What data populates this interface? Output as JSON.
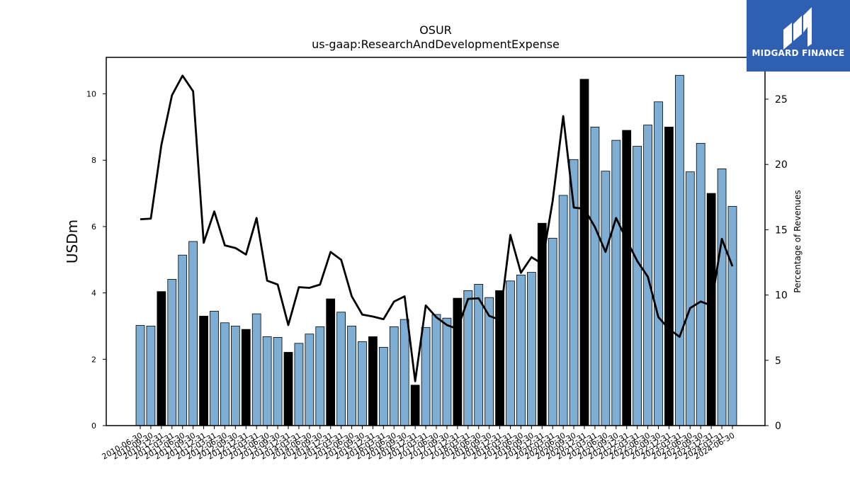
{
  "chart_data": {
    "type": "bar",
    "title": "OSUR",
    "subtitle": "us-gaap:ResearchAndDevelopmentExpense",
    "ylabel": "USDm",
    "y2label": "Percentage of Revenues",
    "ylim": [
      0,
      11.1
    ],
    "y2lim": [
      0,
      28.2
    ],
    "yticks": [
      0,
      2,
      4,
      6,
      8,
      10
    ],
    "y2ticks": [
      0,
      5,
      10,
      15,
      20,
      25
    ],
    "colors": {
      "bar": "#7eaed3",
      "bar_highlight": "#000000",
      "line": "#000000"
    },
    "categories": [
      "2010-06-30",
      "2010-09-30",
      "2010-12-31",
      "2011-03-31",
      "2011-06-30",
      "2011-09-30",
      "2011-12-31",
      "2012-03-31",
      "2012-06-30",
      "2012-09-30",
      "2012-12-31",
      "2013-03-31",
      "2013-06-30",
      "2013-09-30",
      "2013-12-31",
      "2014-03-31",
      "2014-06-30",
      "2014-09-30",
      "2014-12-31",
      "2015-03-31",
      "2015-06-30",
      "2015-09-30",
      "2015-12-31",
      "2016-03-31",
      "2016-06-30",
      "2016-09-30",
      "2016-12-31",
      "2017-03-31",
      "2017-06-30",
      "2017-09-30",
      "2017-12-31",
      "2018-03-31",
      "2018-06-30",
      "2018-09-30",
      "2018-12-31",
      "2019-03-31",
      "2019-06-30",
      "2019-09-30",
      "2019-12-31",
      "2020-03-31",
      "2020-06-30",
      "2020-09-30",
      "2020-12-31",
      "2021-03-31",
      "2021-06-30",
      "2021-09-30",
      "2021-12-31",
      "2022-03-31",
      "2022-06-30",
      "2022-09-30",
      "2022-12-31",
      "2023-03-31",
      "2023-06-30",
      "2023-09-30",
      "2023-12-31",
      "2024-03-31",
      "2024-06-30"
    ],
    "series": [
      {
        "type": "bar",
        "axis": "left",
        "values": [
          3.02,
          3.0,
          4.04,
          4.41,
          5.14,
          5.55,
          3.3,
          3.45,
          3.1,
          3.0,
          2.9,
          3.37,
          2.68,
          2.66,
          2.21,
          2.48,
          2.76,
          2.98,
          3.82,
          3.42,
          3.0,
          2.53,
          2.68,
          2.36,
          2.98,
          3.2,
          1.22,
          2.96,
          3.35,
          3.24,
          3.84,
          4.07,
          4.26,
          3.86,
          4.07,
          4.36,
          4.54,
          4.62,
          6.1,
          5.65,
          6.94,
          8.02,
          10.44,
          9.0,
          7.67,
          8.6,
          8.9,
          8.42,
          9.06,
          9.76,
          9.0,
          10.56,
          7.65,
          8.51,
          7.0,
          7.74,
          6.61
        ],
        "highlight": [
          false,
          false,
          true,
          false,
          false,
          false,
          true,
          false,
          false,
          false,
          true,
          false,
          false,
          false,
          true,
          false,
          false,
          false,
          true,
          false,
          false,
          false,
          true,
          false,
          false,
          false,
          true,
          false,
          false,
          false,
          true,
          false,
          false,
          false,
          true,
          false,
          false,
          false,
          true,
          false,
          false,
          false,
          true,
          false,
          false,
          false,
          true,
          false,
          false,
          false,
          true,
          false,
          false,
          false,
          true,
          false,
          false
        ]
      },
      {
        "type": "line",
        "axis": "right",
        "values": [
          15.8,
          15.85,
          21.5,
          25.3,
          26.8,
          25.6,
          14.0,
          16.4,
          13.8,
          13.6,
          13.1,
          15.9,
          11.1,
          10.8,
          7.7,
          10.6,
          10.55,
          10.8,
          13.3,
          12.7,
          9.9,
          8.5,
          8.35,
          8.15,
          9.5,
          9.9,
          3.4,
          9.2,
          8.3,
          7.7,
          7.4,
          9.7,
          9.75,
          8.4,
          8.1,
          14.6,
          11.7,
          12.9,
          12.4,
          17.2,
          23.7,
          16.7,
          16.6,
          15.2,
          13.3,
          15.9,
          14.2,
          12.6,
          11.4,
          8.3,
          7.4,
          6.8,
          9.0,
          9.5,
          9.2,
          14.3,
          12.2
        ]
      }
    ]
  },
  "logo": {
    "text": "MIDGARD FINANCE"
  }
}
